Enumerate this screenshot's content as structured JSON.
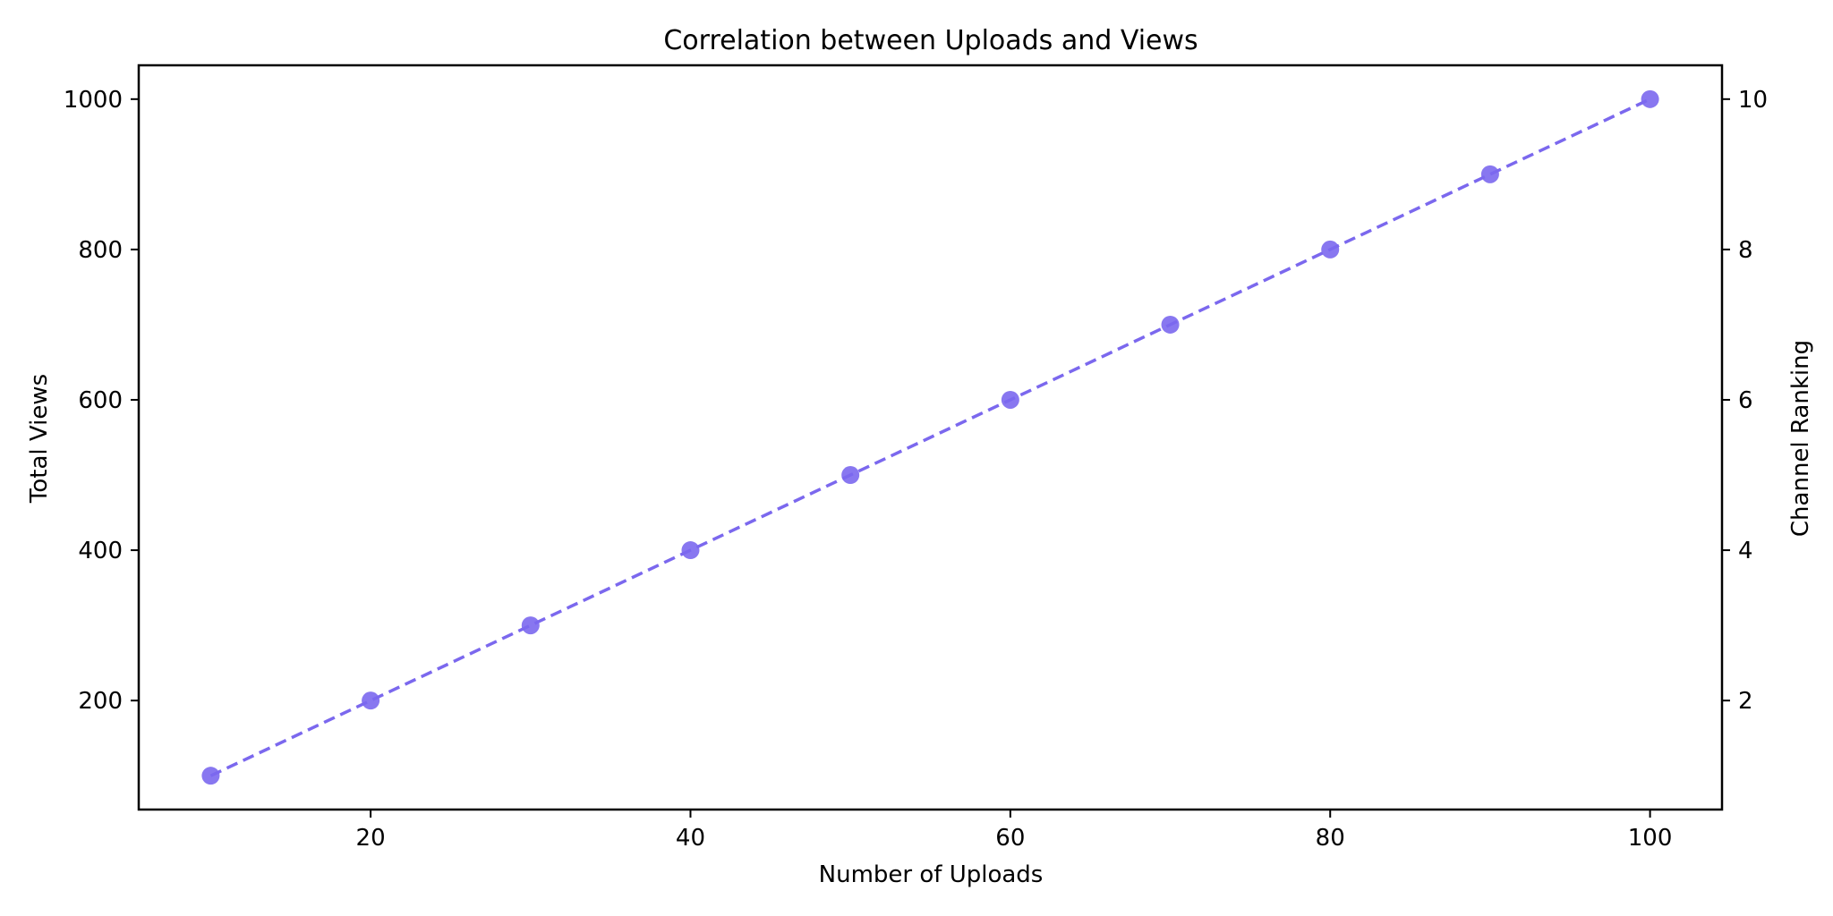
{
  "chart_data": {
    "type": "line",
    "title": "Correlation between Uploads and Views",
    "xlabel": "Number of Uploads",
    "ylabel": "Total Views",
    "y2label": "Channel Ranking",
    "x": [
      10,
      20,
      30,
      40,
      50,
      60,
      70,
      80,
      90,
      100
    ],
    "series": [
      {
        "axis": "left",
        "values": [
          100,
          200,
          300,
          400,
          500,
          600,
          700,
          800,
          900,
          1000
        ],
        "color": "#7b68ee",
        "line_style": "dashed",
        "marker": "circle"
      }
    ],
    "xlim": [
      5.5,
      104.5
    ],
    "ylim": [
      55,
      1045
    ],
    "y2lim": [
      0.55,
      10.45
    ],
    "xticks": [
      20,
      40,
      60,
      80,
      100
    ],
    "yticks": [
      200,
      400,
      600,
      800,
      1000
    ],
    "y2ticks": [
      2,
      4,
      6,
      8,
      10
    ],
    "grid": false,
    "legend": "none"
  }
}
